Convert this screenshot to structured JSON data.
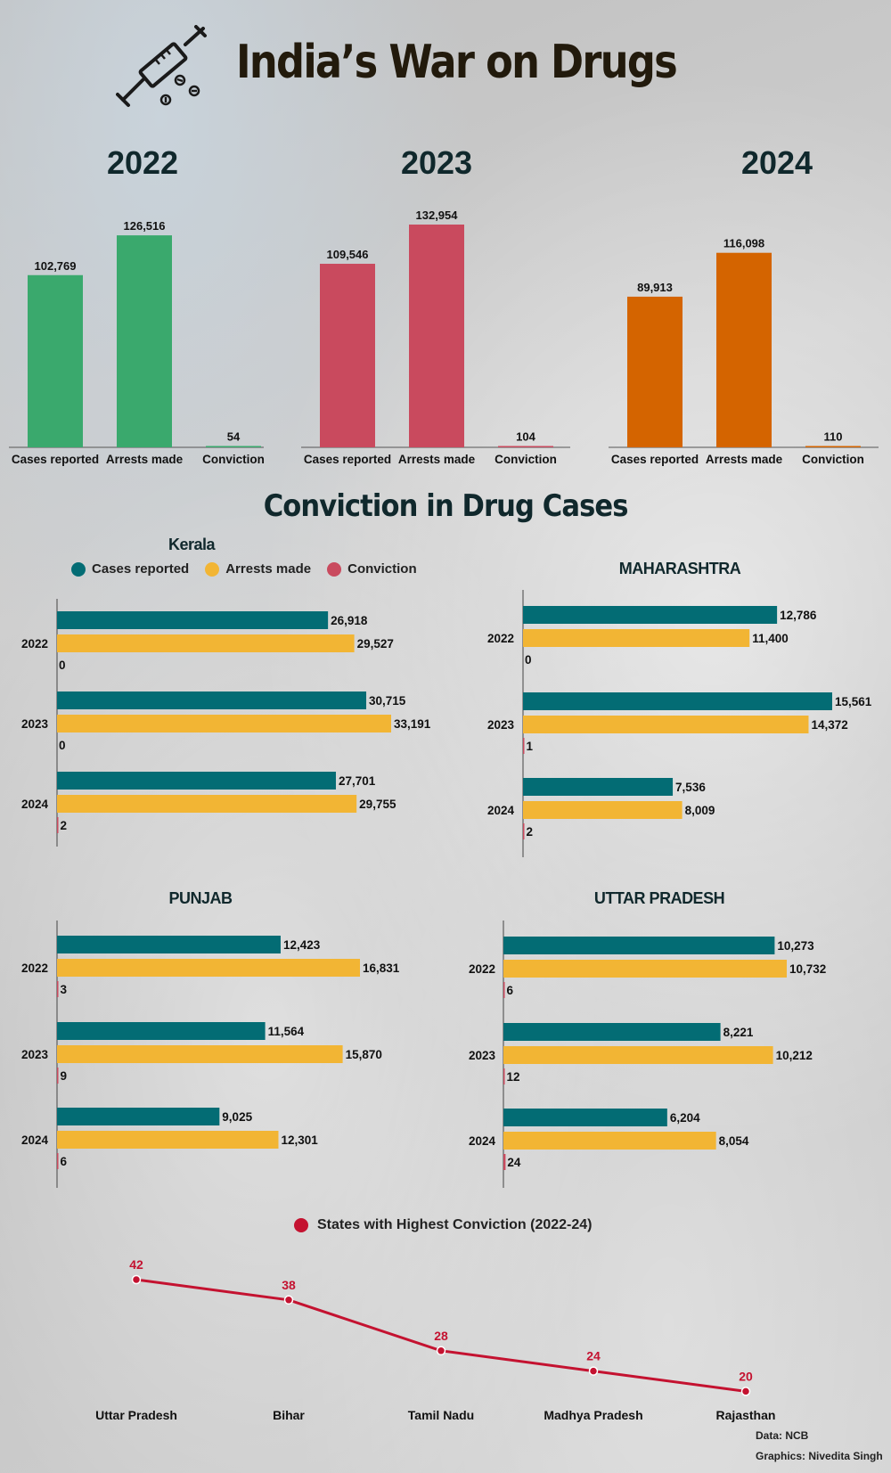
{
  "title": "India’s War on Drugs",
  "conviction_section_title": "Conviction in Drug Cases",
  "icons": {
    "header": "syringe-icon"
  },
  "colors": {
    "2022": "#3aa96d",
    "2023": "#c94a5e",
    "2024": "#d46400",
    "cases": "#036c74",
    "arrests": "#f2b534",
    "conviction": "#c94a5e",
    "line": "#c41230"
  },
  "legend": {
    "cases": "Cases reported",
    "arrests": "Arrests made",
    "conviction": "Conviction"
  },
  "line_legend": "States with Highest Conviction (2022-24)",
  "credits": {
    "data": "Data: NCB",
    "graphics": "Graphics: Nivedita Singh"
  },
  "chart_data": [
    {
      "type": "bar",
      "title": "2022",
      "categories": [
        "Cases reported",
        "Arrests made",
        "Conviction"
      ],
      "values": [
        102769,
        126516,
        54
      ],
      "value_labels": [
        "102,769",
        "126,516",
        "54"
      ]
    },
    {
      "type": "bar",
      "title": "2023",
      "categories": [
        "Cases reported",
        "Arrests made",
        "Conviction"
      ],
      "values": [
        109546,
        132954,
        104
      ],
      "value_labels": [
        "109,546",
        "132,954",
        "104"
      ]
    },
    {
      "type": "bar",
      "title": "2024",
      "categories": [
        "Cases reported",
        "Arrests made",
        "Conviction"
      ],
      "values": [
        89913,
        116098,
        110
      ],
      "value_labels": [
        "89,913",
        "116,098",
        "110"
      ]
    },
    {
      "type": "bar",
      "orientation": "horizontal",
      "title": "Kerala",
      "categories": [
        "2022",
        "2023",
        "2024"
      ],
      "series": [
        {
          "name": "Cases reported",
          "values": [
            26918,
            30715,
            27701
          ],
          "labels": [
            "26,918",
            "30,715",
            "27,701"
          ]
        },
        {
          "name": "Arrests made",
          "values": [
            29527,
            33191,
            29755
          ],
          "labels": [
            "29,527",
            "33,191",
            "29,755"
          ]
        },
        {
          "name": "Conviction",
          "values": [
            0,
            0,
            2
          ],
          "labels": [
            "0",
            "0",
            "2"
          ]
        }
      ]
    },
    {
      "type": "bar",
      "orientation": "horizontal",
      "title": "MAHARASHTRA",
      "categories": [
        "2022",
        "2023",
        "2024"
      ],
      "series": [
        {
          "name": "Cases reported",
          "values": [
            12786,
            15561,
            7536
          ],
          "labels": [
            "12,786",
            "15,561",
            "7,536"
          ]
        },
        {
          "name": "Arrests made",
          "values": [
            11400,
            14372,
            8009
          ],
          "labels": [
            "11,400",
            "14,372",
            "8,009"
          ]
        },
        {
          "name": "Conviction",
          "values": [
            0,
            1,
            2
          ],
          "labels": [
            "0",
            "1",
            "2"
          ]
        }
      ]
    },
    {
      "type": "bar",
      "orientation": "horizontal",
      "title": "PUNJAB",
      "categories": [
        "2022",
        "2023",
        "2024"
      ],
      "series": [
        {
          "name": "Cases reported",
          "values": [
            12423,
            11564,
            9025
          ],
          "labels": [
            "12,423",
            "11,564",
            "9,025"
          ]
        },
        {
          "name": "Arrests made",
          "values": [
            16831,
            15870,
            12301
          ],
          "labels": [
            "16,831",
            "15,870",
            "12,301"
          ]
        },
        {
          "name": "Conviction",
          "values": [
            3,
            9,
            6
          ],
          "labels": [
            "3",
            "9",
            "6"
          ]
        }
      ]
    },
    {
      "type": "bar",
      "orientation": "horizontal",
      "title": "UTTAR PRADESH",
      "categories": [
        "2022",
        "2023",
        "2024"
      ],
      "series": [
        {
          "name": "Cases reported",
          "values": [
            10273,
            8221,
            6204
          ],
          "labels": [
            "10,273",
            "8,221",
            "6,204"
          ]
        },
        {
          "name": "Arrests made",
          "values": [
            10732,
            10212,
            8054
          ],
          "labels": [
            "10,732",
            "10,212",
            "8,054"
          ]
        },
        {
          "name": "Conviction",
          "values": [
            6,
            12,
            24
          ],
          "labels": [
            "6",
            "12",
            "24"
          ]
        }
      ]
    },
    {
      "type": "line",
      "categories": [
        "Uttar Pradesh",
        "Bihar",
        "Tamil Nadu",
        "Madhya Pradesh",
        "Rajasthan"
      ],
      "values": [
        42,
        38,
        28,
        24,
        20
      ],
      "value_labels": [
        "42",
        "38",
        "28",
        "24",
        "20"
      ],
      "series_name": "States with Highest Conviction (2022-24)"
    }
  ]
}
